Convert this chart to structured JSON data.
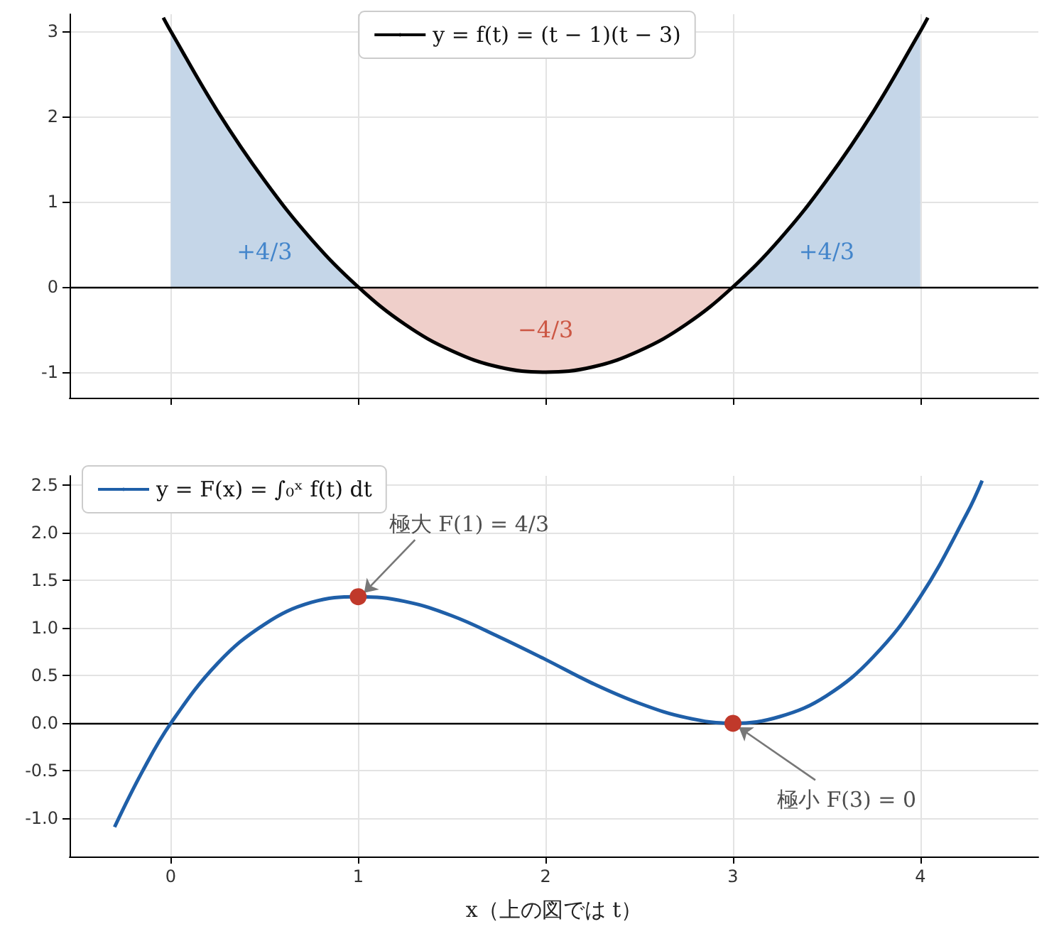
{
  "chart_data": [
    {
      "type": "line",
      "xlim": [
        -0.54,
        4.63
      ],
      "xticks": [
        0,
        1,
        2,
        3,
        4
      ],
      "ylim": [
        -1.3,
        3.2
      ],
      "yticks": [
        -1,
        0,
        1,
        2,
        3
      ],
      "grid": true,
      "legend": "top",
      "tick_labels": "y",
      "ref_lines": [
        {
          "axis": "y",
          "value": 0,
          "color": "#000000"
        }
      ],
      "series": [
        {
          "type": "area",
          "color": "#c5d6e8",
          "x": [
            0,
            0.25,
            0.5,
            0.75,
            1,
            2,
            3,
            3.25,
            3.5,
            3.75,
            4
          ],
          "values": [
            3,
            2.06,
            1.25,
            0.56,
            0,
            null,
            0,
            0.56,
            1.25,
            2.06,
            3
          ]
        },
        {
          "type": "area",
          "color": "#efcfca",
          "x": [
            1,
            1.25,
            1.5,
            1.75,
            2,
            2.25,
            2.5,
            2.75,
            3
          ],
          "values": [
            0,
            -0.44,
            -0.75,
            -0.94,
            -1,
            -0.94,
            -0.75,
            -0.44,
            0
          ]
        },
        {
          "name": "y = f(t) = (t − 1)(t − 3)",
          "color": "#000000",
          "x": [
            -0.04,
            0,
            0.25,
            0.5,
            0.75,
            1,
            1.25,
            1.5,
            1.75,
            2,
            2.25,
            2.5,
            2.75,
            3,
            3.25,
            3.5,
            3.75,
            4,
            4.04
          ],
          "values": [
            3.16,
            3,
            2.06,
            1.25,
            0.56,
            0,
            -0.44,
            -0.75,
            -0.94,
            -1,
            -0.94,
            -0.75,
            -0.44,
            0,
            0.56,
            1.25,
            2.06,
            3,
            3.16
          ]
        }
      ],
      "annotations": [
        "+4/3",
        "−4/3",
        "+4/3"
      ]
    },
    {
      "type": "line",
      "xlabel": "x（上の図では t）",
      "xlim": [
        -0.54,
        4.63
      ],
      "xticks": [
        0,
        1,
        2,
        3,
        4
      ],
      "ylim": [
        -1.4,
        2.6
      ],
      "yticks": [
        {
          "value": -1,
          "label": "-1.0"
        },
        {
          "value": -0.5,
          "label": "-0.5"
        },
        {
          "value": 0,
          "label": "0.0"
        },
        {
          "value": 0.5,
          "label": "0.5"
        },
        {
          "value": 1,
          "label": "1.0"
        },
        {
          "value": 1.5,
          "label": "1.5"
        },
        {
          "value": 2,
          "label": "2.0"
        },
        {
          "value": 2.5,
          "label": "2.5"
        }
      ],
      "grid": true,
      "legend": "top left",
      "ref_lines": [
        {
          "axis": "y",
          "value": 0,
          "color": "#000000"
        }
      ],
      "series": [
        {
          "name": "y = F(x) = ∫₀ˣ f(t) dt",
          "color": "#1f5fa8",
          "x": [
            -0.3,
            -0.15,
            0,
            0.25,
            0.5,
            0.75,
            1,
            1.25,
            1.5,
            1.75,
            2,
            2.25,
            2.5,
            2.75,
            3,
            3.25,
            3.5,
            3.75,
            4,
            4.25,
            4.33
          ],
          "values": [
            -1.09,
            -0.5,
            0,
            0.63,
            1.04,
            1.27,
            1.33,
            1.28,
            1.13,
            0.91,
            0.67,
            0.42,
            0.21,
            0.06,
            0,
            0.07,
            0.29,
            0.7,
            1.33,
            2.21,
            2.55
          ]
        },
        {
          "type": "scatter",
          "marker": "circle",
          "color": "#c0392b",
          "x": [
            1,
            3
          ],
          "values": [
            1.33,
            0
          ]
        }
      ],
      "annotations": [
        {
          "text": "極大 F(1) = 4/3",
          "x": 1,
          "y": 1.33
        },
        {
          "text": "極小 F(3) = 0",
          "x": 3,
          "y": 0
        }
      ]
    }
  ]
}
